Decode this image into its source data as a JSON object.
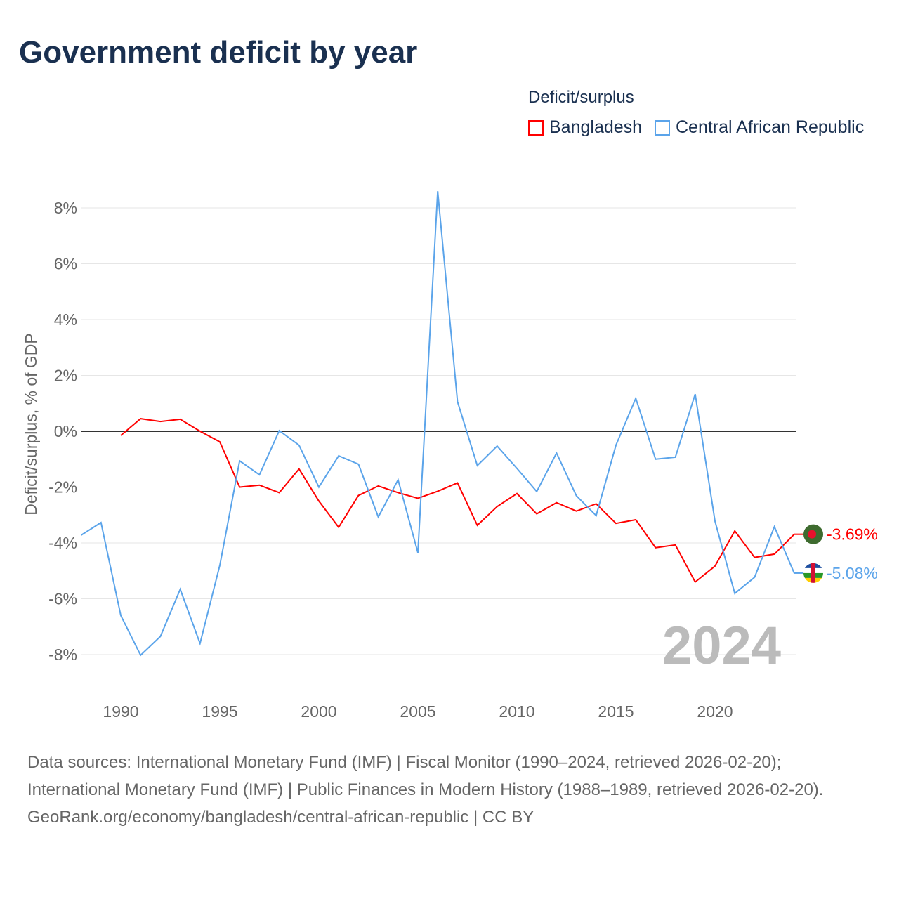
{
  "chart_data": {
    "type": "line",
    "title": "Government deficit by year",
    "ylabel": "Deficit/surplus, % of GDP",
    "xlabel": "",
    "ylim": [
      -9,
      9
    ],
    "xlim": [
      1988,
      2024
    ],
    "yticks": [
      8,
      6,
      4,
      2,
      0,
      -2,
      -4,
      -6,
      -8
    ],
    "ytick_labels": [
      "8%",
      "6%",
      "4%",
      "2%",
      "0%",
      "-2%",
      "-4%",
      "-6%",
      "-8%"
    ],
    "xticks": [
      1990,
      1995,
      2000,
      2005,
      2010,
      2015,
      2020
    ],
    "xtick_labels": [
      "1990",
      "1995",
      "2000",
      "2005",
      "2010",
      "2015",
      "2020"
    ],
    "legend_title": "Deficit/surplus",
    "legend_placement": "top-right",
    "year_label": "2024",
    "series": [
      {
        "name": "Bangladesh",
        "color": "#ff0000",
        "end_label": "-3.69%",
        "x": [
          1990,
          1991,
          1992,
          1993,
          1994,
          1995,
          1996,
          1997,
          1998,
          1999,
          2000,
          2001,
          2002,
          2003,
          2004,
          2005,
          2006,
          2007,
          2008,
          2009,
          2010,
          2011,
          2012,
          2013,
          2014,
          2015,
          2016,
          2017,
          2018,
          2019,
          2020,
          2021,
          2022,
          2023,
          2024
        ],
        "values": [
          -0.15,
          0.45,
          0.35,
          0.43,
          0,
          -0.38,
          -2.0,
          -1.93,
          -2.2,
          -1.35,
          -2.5,
          -3.44,
          -2.3,
          -1.96,
          -2.2,
          -2.4,
          -2.15,
          -1.85,
          -3.37,
          -2.7,
          -2.23,
          -2.96,
          -2.56,
          -2.86,
          -2.6,
          -3.3,
          -3.17,
          -4.17,
          -4.07,
          -5.4,
          -4.83,
          -3.57,
          -4.52,
          -4.4,
          -3.69
        ]
      },
      {
        "name": "Central African Republic",
        "color": "#5ba4ea",
        "end_label": "-5.08%",
        "x": [
          1988,
          1989,
          1990,
          1991,
          1992,
          1993,
          1994,
          1995,
          1996,
          1997,
          1998,
          1999,
          2000,
          2001,
          2002,
          2003,
          2004,
          2005,
          2006,
          2007,
          2008,
          2009,
          2010,
          2011,
          2012,
          2013,
          2014,
          2015,
          2016,
          2017,
          2018,
          2019,
          2020,
          2021,
          2022,
          2023,
          2024
        ],
        "values": [
          -3.72,
          -3.27,
          -6.6,
          -8.02,
          -7.35,
          -5.66,
          -7.6,
          -4.8,
          -1.06,
          -1.56,
          0.02,
          -0.5,
          -2.0,
          -0.88,
          -1.18,
          -3.07,
          -1.74,
          -4.35,
          8.6,
          1.06,
          -1.23,
          -0.53,
          -1.33,
          -2.16,
          -0.78,
          -2.31,
          -3.02,
          -0.5,
          1.18,
          -1.0,
          -0.93,
          1.33,
          -3.22,
          -5.81,
          -5.23,
          -3.42,
          -5.08
        ]
      }
    ]
  },
  "sources": {
    "line1": "Data sources: International Monetary Fund (IMF) | Fiscal Monitor (1990–2024, retrieved 2026-02-20); International Monetary Fund (IMF) | Public Finances in Modern History (1988–1989, retrieved 2026-02-20).",
    "line2": "GeoRank.org/economy/bangladesh/central-african-republic | CC BY"
  }
}
